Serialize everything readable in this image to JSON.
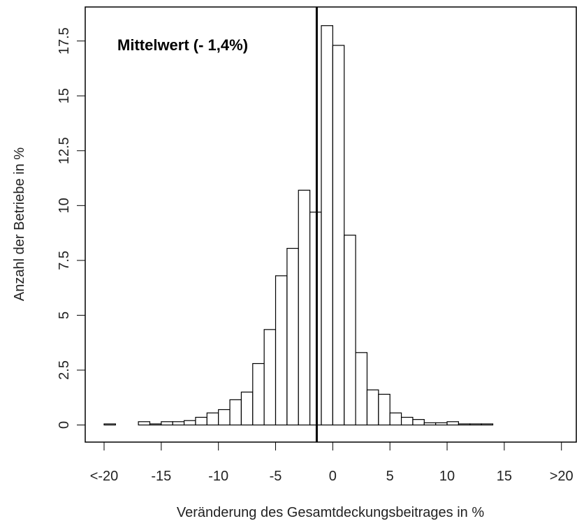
{
  "chart_data": {
    "type": "histogram",
    "annotation": "Mittelwert (- 1,4%)",
    "x_label": "Veränderung des Gesamtdeckungsbeitrages in %",
    "y_label": "Anzahl der Betriebe in %",
    "bins": [
      -20,
      -19,
      -18,
      -17,
      -16,
      -15,
      -14,
      -13,
      -12,
      -11,
      -10,
      -9,
      -8,
      -7,
      -6,
      -5,
      -4,
      -3,
      -2,
      -1,
      0,
      1,
      2,
      3,
      4,
      5,
      6,
      7,
      8,
      9,
      10,
      11,
      12,
      13,
      14,
      15,
      16,
      17,
      18,
      19,
      20
    ],
    "values": [
      0.05,
      0,
      0,
      0.15,
      0.05,
      0.15,
      0.15,
      0.2,
      0.35,
      0.55,
      0.7,
      1.15,
      1.5,
      2.8,
      4.35,
      6.8,
      8.05,
      10.7,
      9.7,
      18.2,
      17.3,
      8.65,
      3.3,
      1.6,
      1.4,
      0.55,
      0.35,
      0.25,
      0.1,
      0.1,
      0.15,
      0.05,
      0.05,
      0.05,
      0,
      0,
      0,
      0,
      0,
      0
    ],
    "mean": -1.4,
    "color": "#ffffff",
    "xlim": [
      -21.65,
      21.3
    ],
    "ylim": [
      -0.78,
      19.05
    ],
    "xticks": [
      {
        "value": -20,
        "label": "<-20"
      },
      -15,
      -10,
      -5,
      0,
      5,
      10,
      15,
      {
        "value": 20,
        "label": ">20"
      }
    ],
    "yticks": [
      0,
      2.5,
      5,
      7.5,
      10,
      12.5,
      15,
      17.5
    ]
  }
}
